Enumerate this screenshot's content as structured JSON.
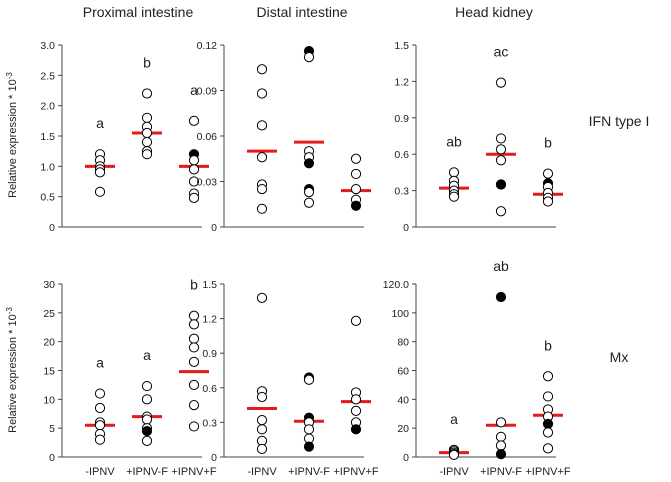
{
  "figure": {
    "columns": [
      "Proximal intestine",
      "Distal intestine",
      "Head kidney"
    ],
    "rows": [
      "IFN type I",
      "Mx"
    ],
    "ylabel": "Relative expression * 10",
    "ylabel_exp": "-3",
    "categories": [
      "-IPNV",
      "+IPNV-F",
      "+IPNV+F"
    ],
    "colors": {
      "median": "#e41a1c",
      "open": "#ffffff",
      "filled": "#000000",
      "stroke": "#000000"
    }
  },
  "chart_data": [
    {
      "type": "scatter",
      "panel": "Proximal intestine / IFN type I",
      "ylim": [
        0,
        3.0
      ],
      "ticks": [
        "0",
        "0.5",
        "1.0",
        "1.5",
        "2.0",
        "2.5",
        "3.0"
      ],
      "tick_values": [
        0,
        0.5,
        1.0,
        1.5,
        2.0,
        2.5,
        3.0
      ],
      "groups": [
        {
          "category": "-IPNV",
          "letter": "a",
          "median": 1.0,
          "open": [
            1.2,
            1.1,
            1.0,
            0.95,
            0.9,
            0.58
          ],
          "filled": []
        },
        {
          "category": "+IPNV-F",
          "letter": "b",
          "median": 1.55,
          "open": [
            2.2,
            1.8,
            1.65,
            1.55,
            1.4,
            1.25,
            1.2
          ],
          "filled": []
        },
        {
          "category": "+IPNV+F",
          "letter": "a",
          "median": 1.0,
          "open": [
            1.75,
            1.1,
            0.95,
            0.75,
            0.55,
            0.48
          ],
          "filled": [
            1.2
          ]
        }
      ]
    },
    {
      "type": "scatter",
      "panel": "Distal intestine / IFN type I",
      "ylim": [
        0,
        0.12
      ],
      "ticks": [
        "0",
        "0.03",
        "0.06",
        "0.09",
        "0.12"
      ],
      "tick_values": [
        0,
        0.03,
        0.06,
        0.09,
        0.12
      ],
      "groups": [
        {
          "category": "-IPNV",
          "letter": "",
          "median": 0.05,
          "open": [
            0.104,
            0.088,
            0.067,
            0.046,
            0.028,
            0.025,
            0.012
          ],
          "filled": []
        },
        {
          "category": "+IPNV-F",
          "letter": "",
          "median": 0.056,
          "open": [
            0.112,
            0.05,
            0.046,
            0.023,
            0.016
          ],
          "filled": [
            0.116,
            0.042,
            0.025
          ]
        },
        {
          "category": "+IPNV+F",
          "letter": "",
          "median": 0.024,
          "open": [
            0.045,
            0.035,
            0.025,
            0.018
          ],
          "filled": [
            0.014
          ]
        }
      ]
    },
    {
      "type": "scatter",
      "panel": "Head kidney / IFN type I",
      "ylim": [
        0,
        1.5
      ],
      "ticks": [
        "0",
        "0.3",
        "0.6",
        "0.9",
        "1.2",
        "1.5"
      ],
      "tick_values": [
        0,
        0.3,
        0.6,
        0.9,
        1.2,
        1.5
      ],
      "groups": [
        {
          "category": "-IPNV",
          "letter": "ab",
          "median": 0.32,
          "open": [
            0.45,
            0.38,
            0.34,
            0.3,
            0.27,
            0.25
          ],
          "filled": []
        },
        {
          "category": "+IPNV-F",
          "letter": "ac",
          "median": 0.6,
          "open": [
            1.19,
            0.73,
            0.64,
            0.55,
            0.35,
            0.13
          ],
          "filled": [
            0.35
          ]
        },
        {
          "category": "+IPNV+F",
          "letter": "b",
          "median": 0.27,
          "open": [
            0.44,
            0.33,
            0.28,
            0.24,
            0.21
          ],
          "filled": [
            0.36
          ]
        }
      ]
    },
    {
      "type": "scatter",
      "panel": "Proximal intestine / Mx",
      "ylim": [
        0,
        30
      ],
      "ticks": [
        "0",
        "5",
        "10",
        "15",
        "20",
        "25",
        "30"
      ],
      "tick_values": [
        0,
        5,
        10,
        15,
        20,
        25,
        30
      ],
      "groups": [
        {
          "category": "-IPNV",
          "letter": "a",
          "median": 5.5,
          "open": [
            11,
            8.5,
            6,
            5.5,
            4,
            3
          ],
          "filled": []
        },
        {
          "category": "+IPNV-F",
          "letter": "a",
          "median": 7,
          "open": [
            12.3,
            10,
            7,
            6.5,
            5,
            2.8
          ],
          "filled": [
            4.5
          ]
        },
        {
          "category": "+IPNV+F",
          "letter": "b",
          "median": 14.8,
          "open": [
            24.5,
            23,
            20.5,
            19,
            16.5,
            12.5,
            9,
            5.3
          ],
          "filled": []
        }
      ]
    },
    {
      "type": "scatter",
      "panel": "Distal intestine / Mx",
      "ylim": [
        0,
        1.5
      ],
      "ticks": [
        "0",
        "0.3",
        "0.6",
        "0.9",
        "1.2",
        "1.5"
      ],
      "tick_values": [
        0,
        0.3,
        0.6,
        0.9,
        1.2,
        1.5
      ],
      "groups": [
        {
          "category": "-IPNV",
          "letter": "",
          "median": 0.42,
          "open": [
            1.38,
            0.57,
            0.52,
            0.32,
            0.24,
            0.14,
            0.07
          ],
          "filled": []
        },
        {
          "category": "+IPNV-F",
          "letter": "",
          "median": 0.31,
          "open": [
            0.67,
            0.3,
            0.24,
            0.16
          ],
          "filled": [
            0.69,
            0.34,
            0.09
          ]
        },
        {
          "category": "+IPNV+F",
          "letter": "",
          "median": 0.48,
          "open": [
            1.18,
            0.56,
            0.5,
            0.4,
            0.3
          ],
          "filled": [
            0.24
          ]
        }
      ]
    },
    {
      "type": "scatter",
      "panel": "Head kidney / Mx",
      "ylim": [
        0,
        120
      ],
      "ticks": [
        "0",
        "20",
        "40",
        "60",
        "80",
        "100",
        "120.0"
      ],
      "tick_values": [
        0,
        20,
        40,
        60,
        80,
        100,
        120
      ],
      "groups": [
        {
          "category": "-IPNV",
          "letter": "a",
          "median": 3,
          "open": [
            5,
            4,
            3,
            2,
            1.5
          ],
          "filled": []
        },
        {
          "category": "+IPNV-F",
          "letter": "ab",
          "median": 22,
          "open": [
            24,
            14,
            8
          ],
          "filled": [
            111,
            2
          ]
        },
        {
          "category": "+IPNV+F",
          "letter": "b",
          "median": 29,
          "open": [
            56,
            42,
            33,
            28,
            17,
            6
          ],
          "filled": [
            23
          ]
        }
      ]
    }
  ]
}
